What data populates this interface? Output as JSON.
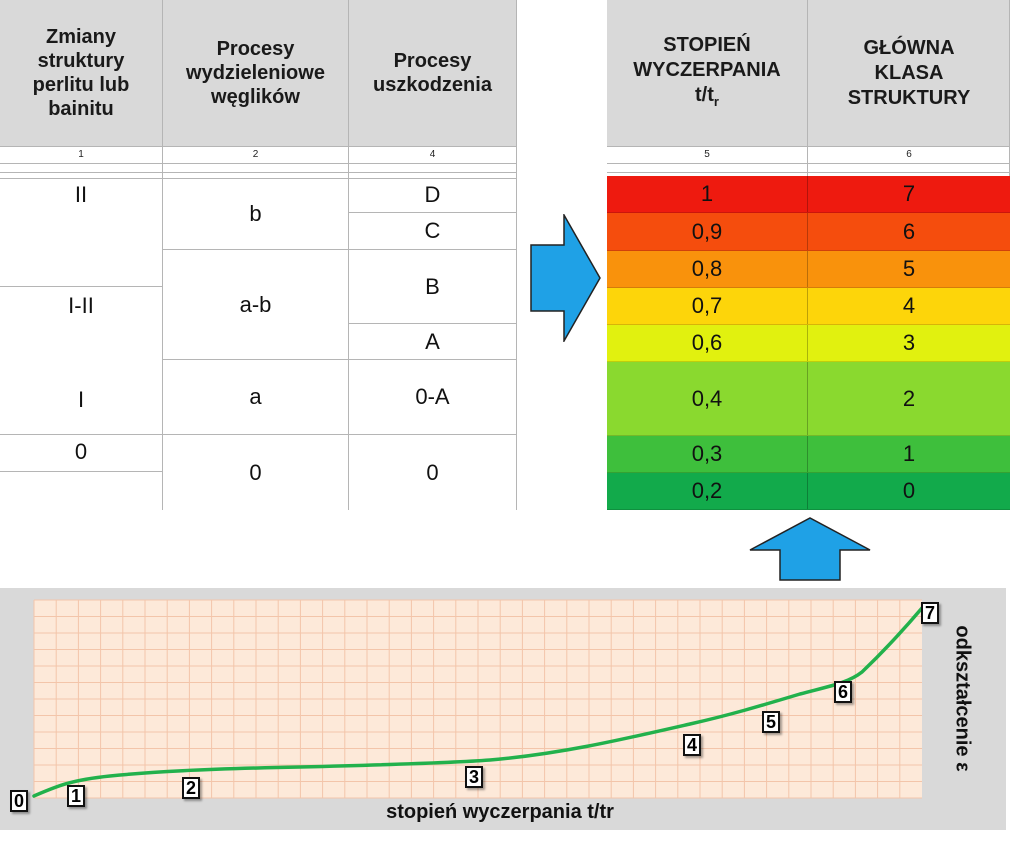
{
  "left_table": {
    "headers": [
      [
        "Zmiany",
        "struktury",
        "perlitu lub",
        "bainitu"
      ],
      [
        "Procesy",
        "wydzieleniowe",
        "węglików"
      ],
      [
        "Procesy",
        "uszkodzenia"
      ]
    ],
    "col_numbers": [
      "1",
      "2",
      "4"
    ],
    "col1": [
      "II",
      "I-II",
      "I",
      "0"
    ],
    "col2": [
      "b",
      "a-b",
      "a",
      "0"
    ],
    "col3": [
      "D",
      "C",
      "B",
      "A",
      "0-A",
      "0"
    ]
  },
  "right_table": {
    "header1": {
      "line1": "STOPIEŃ",
      "line2": "WYCZERPANIA",
      "base": "t/t",
      "sub": "r"
    },
    "header2": [
      "GŁÓWNA",
      "KLASA",
      "STRUKTURY"
    ],
    "col_numbers": [
      "5",
      "6"
    ],
    "rows": [
      {
        "degree": "1",
        "class": "7",
        "color": "#ee1a0f"
      },
      {
        "degree": "0,9",
        "class": "6",
        "color": "#f54d0d"
      },
      {
        "degree": "0,8",
        "class": "5",
        "color": "#f9920c"
      },
      {
        "degree": "0,7",
        "class": "4",
        "color": "#fdd50a"
      },
      {
        "degree": "0,6",
        "class": "3",
        "color": "#e1f10f"
      },
      {
        "degree": "0,4",
        "class": "2",
        "color": "#8ad92f"
      },
      {
        "degree": "0,3",
        "class": "1",
        "color": "#3ebf3c"
      },
      {
        "degree": "0,2",
        "class": "0",
        "color": "#12aa4b"
      }
    ]
  },
  "arrow_color": "#1fa1e6",
  "chart": {
    "xlabel": "stopień wyczerpania t/tr",
    "ylabel": "odkształcenie ε",
    "line_color": "#22b14c",
    "points": [
      "0",
      "1",
      "2",
      "3",
      "4",
      "5",
      "6",
      "7"
    ]
  }
}
